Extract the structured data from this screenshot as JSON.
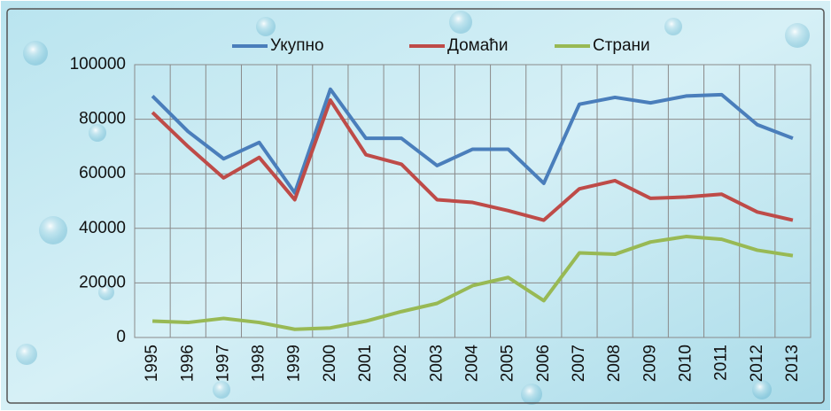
{
  "chart_data": {
    "type": "line",
    "categories": [
      "1995",
      "1996",
      "1997",
      "1998",
      "1999",
      "2000",
      "2001",
      "2002",
      "2003",
      "2004",
      "2005",
      "2006",
      "2007",
      "2008",
      "2009",
      "2010",
      "2011",
      "2012",
      "2013"
    ],
    "series": [
      {
        "name": "Укупно",
        "color": "#4a7ebb",
        "values": [
          88500,
          75500,
          65500,
          71500,
          53000,
          91000,
          73000,
          73000,
          63000,
          69000,
          69000,
          56500,
          85500,
          88000,
          86000,
          88500,
          89000,
          78000,
          73000
        ]
      },
      {
        "name": "Домаћи",
        "color": "#be4b48",
        "values": [
          82500,
          70000,
          58500,
          66000,
          50500,
          87000,
          67000,
          63500,
          50500,
          49500,
          46500,
          43000,
          54500,
          57500,
          51000,
          51500,
          52500,
          46000,
          43000
        ]
      },
      {
        "name": "Страни",
        "color": "#98b954",
        "values": [
          6000,
          5500,
          7000,
          5500,
          3000,
          3500,
          6000,
          9500,
          12500,
          19000,
          22000,
          13500,
          31000,
          30500,
          35000,
          37000,
          36000,
          32000,
          30000
        ]
      }
    ],
    "ylim": [
      0,
      100000
    ],
    "yticks": [
      0,
      20000,
      40000,
      60000,
      80000,
      100000
    ],
    "grid": true,
    "legend": "top"
  }
}
